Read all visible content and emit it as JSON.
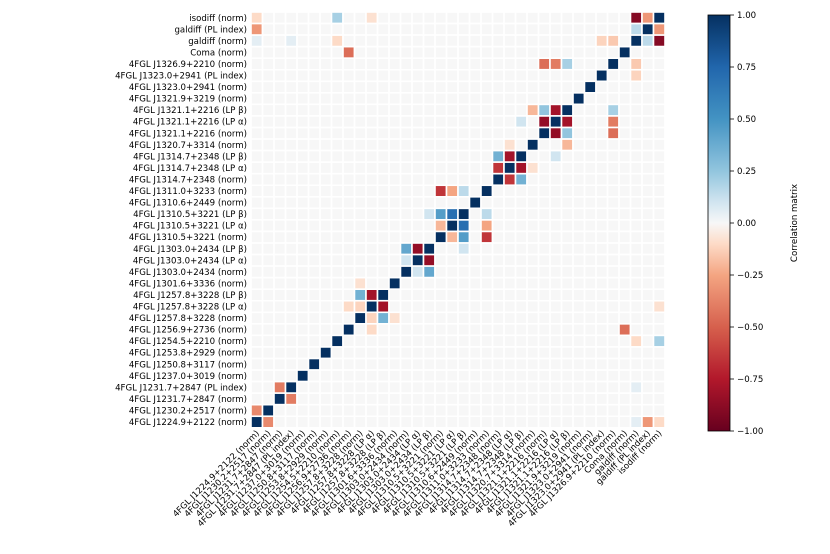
{
  "chart_data": {
    "type": "heatmap",
    "title": "",
    "colorbar_label": "Correlation matrix",
    "colorbar_ticks": [
      1.0,
      0.75,
      0.5,
      0.25,
      0.0,
      -0.25,
      -0.5,
      -0.75,
      -1.0
    ],
    "colorbar_tick_labels": [
      "1.00",
      "0.75",
      "0.50",
      "0.25",
      "0.00",
      "−0.25",
      "−0.50",
      "−0.75",
      "−1.00"
    ],
    "vlim": [
      -1.0,
      1.0
    ],
    "colormap": "RdBu",
    "colors": {
      "pos_dark": "#053061",
      "neg_dark": "#67001f",
      "neutral": "#f7f7f7",
      "cell_border": "#ffffff"
    },
    "variables": [
      "4FGL J1224.9+2122 (norm)",
      "4FGL J1230.2+2517 (norm)",
      "4FGL J1231.7+2847 (norm)",
      "4FGL J1231.7+2847 (PL index)",
      "4FGL J1237.0+3019 (norm)",
      "4FGL J1250.8+3117 (norm)",
      "4FGL J1253.8+2929 (norm)",
      "4FGL J1254.5+2210 (norm)",
      "4FGL J1256.9+2736 (norm)",
      "4FGL J1257.8+3228 (norm)",
      "4FGL J1257.8+3228 (LP α)",
      "4FGL J1257.8+3228 (LP β)",
      "4FGL J1301.6+3336 (norm)",
      "4FGL J1303.0+2434 (norm)",
      "4FGL J1303.0+2434 (LP α)",
      "4FGL J1303.0+2434 (LP β)",
      "4FGL J1310.5+3221 (norm)",
      "4FGL J1310.5+3221 (LP α)",
      "4FGL J1310.5+3221 (LP β)",
      "4FGL J1310.6+2449 (norm)",
      "4FGL J1311.0+3233 (norm)",
      "4FGL J1314.7+2348 (norm)",
      "4FGL J1314.7+2348 (LP α)",
      "4FGL J1314.7+2348 (LP β)",
      "4FGL J1320.7+3314 (norm)",
      "4FGL J1321.1+2216 (norm)",
      "4FGL J1321.1+2216 (LP α)",
      "4FGL J1321.1+2216 (LP β)",
      "4FGL J1321.9+3219 (norm)",
      "4FGL J1323.0+2941 (norm)",
      "4FGL J1323.0+2941 (PL index)",
      "4FGL J1326.9+2210 (norm)",
      "Coma (norm)",
      "galdiff (norm)",
      "galdiff (PL index)",
      "isodiff (norm)"
    ],
    "pairs": [
      [
        "4FGL J1224.9+2122 (norm)",
        "4FGL J1230.2+2517 (norm)",
        -0.35
      ],
      [
        "4FGL J1224.9+2122 (norm)",
        "galdiff (PL index)",
        -0.3
      ],
      [
        "4FGL J1231.7+2847 (norm)",
        "4FGL J1231.7+2847 (PL index)",
        -0.4
      ],
      [
        "4FGL J1231.7+2847 (PL index)",
        "galdiff (norm)",
        0.05
      ],
      [
        "4FGL J1256.9+2736 (norm)",
        "4FGL J1257.8+3228 (LP α)",
        -0.1
      ],
      [
        "4FGL J1257.8+3228 (norm)",
        "4FGL J1257.8+3228 (LP α)",
        -0.12
      ],
      [
        "4FGL J1257.8+3228 (norm)",
        "4FGL J1257.8+3228 (LP β)",
        0.35
      ],
      [
        "4FGL J1257.8+3228 (LP α)",
        "4FGL J1257.8+3228 (LP β)",
        -0.8
      ],
      [
        "4FGL J1257.8+3228 (norm)",
        "4FGL J1301.6+3336 (norm)",
        -0.08
      ],
      [
        "4FGL J1303.0+2434 (norm)",
        "4FGL J1303.0+2434 (LP α)",
        0.1
      ],
      [
        "4FGL J1303.0+2434 (norm)",
        "4FGL J1303.0+2434 (LP β)",
        0.4
      ],
      [
        "4FGL J1303.0+2434 (LP α)",
        "4FGL J1303.0+2434 (LP β)",
        -0.85
      ],
      [
        "4FGL J1310.5+3221 (norm)",
        "4FGL J1310.5+3221 (LP α)",
        -0.2
      ],
      [
        "4FGL J1310.5+3221 (norm)",
        "4FGL J1310.5+3221 (LP β)",
        0.45
      ],
      [
        "4FGL J1310.5+3221 (LP α)",
        "4FGL J1310.5+3221 (LP β)",
        0.7
      ],
      [
        "4FGL J1310.5+3221 (LP α)",
        "4FGL J1311.0+3233 (norm)",
        -0.25
      ],
      [
        "4FGL J1310.5+3221 (norm)",
        "4FGL J1311.0+3233 (norm)",
        -0.65
      ],
      [
        "4FGL J1310.5+3221 (LP β)",
        "4FGL J1311.0+3233 (norm)",
        0.15
      ],
      [
        "4FGL J1303.0+2434 (LP β)",
        "4FGL J1310.5+3221 (LP β)",
        0.1
      ],
      [
        "4FGL J1314.7+2348 (norm)",
        "4FGL J1314.7+2348 (LP α)",
        -0.65
      ],
      [
        "4FGL J1314.7+2348 (norm)",
        "4FGL J1314.7+2348 (LP β)",
        0.35
      ],
      [
        "4FGL J1314.7+2348 (LP α)",
        "4FGL J1314.7+2348 (LP β)",
        -0.8
      ],
      [
        "4FGL J1314.7+2348 (LP α)",
        "4FGL J1320.7+3314 (norm)",
        -0.08
      ],
      [
        "4FGL J1314.7+2348 (LP β)",
        "4FGL J1321.1+2216 (LP α)",
        0.1
      ],
      [
        "4FGL J1321.1+2216 (norm)",
        "4FGL J1321.1+2216 (LP α)",
        -0.85
      ],
      [
        "4FGL J1321.1+2216 (norm)",
        "4FGL J1321.1+2216 (LP β)",
        0.25
      ],
      [
        "4FGL J1321.1+2216 (LP α)",
        "4FGL J1321.1+2216 (LP β)",
        -0.8
      ],
      [
        "4FGL J1320.7+3314 (norm)",
        "4FGL J1321.1+2216 (LP β)",
        -0.2
      ],
      [
        "4FGL J1321.1+2216 (norm)",
        "4FGL J1326.9+2210 (norm)",
        -0.45
      ],
      [
        "4FGL J1321.1+2216 (LP α)",
        "4FGL J1326.9+2210 (norm)",
        -0.4
      ],
      [
        "4FGL J1321.1+2216 (LP β)",
        "4FGL J1326.9+2210 (norm)",
        0.2
      ],
      [
        "4FGL J1256.9+2736 (norm)",
        "Coma (norm)",
        -0.45
      ],
      [
        "4FGL J1254.5+2210 (norm)",
        "galdiff (norm)",
        -0.1
      ],
      [
        "4FGL J1323.0+2941 (PL index)",
        "galdiff (norm)",
        -0.12
      ],
      [
        "4FGL J1326.9+2210 (norm)",
        "galdiff (norm)",
        -0.15
      ],
      [
        "4FGL J1254.5+2210 (norm)",
        "isodiff (norm)",
        0.2
      ],
      [
        "4FGL J1224.9+2122 (norm)",
        "isodiff (norm)",
        -0.1
      ],
      [
        "4FGL J1224.9+2122 (norm)",
        "galdiff (norm)",
        0.05
      ],
      [
        "galdiff (norm)",
        "isodiff (norm)",
        -0.9
      ],
      [
        "galdiff (PL index)",
        "isodiff (norm)",
        -0.3
      ],
      [
        "galdiff (norm)",
        "galdiff (PL index)",
        0.15
      ],
      [
        "4FGL J1257.8+3228 (LP α)",
        "isodiff (norm)",
        -0.08
      ]
    ]
  }
}
